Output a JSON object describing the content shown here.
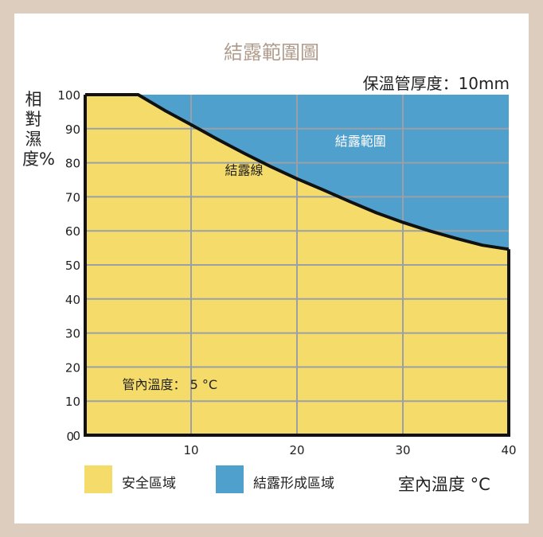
{
  "colors": {
    "safe": "#f5dc6a",
    "condensation": "#4fa0cd",
    "frame": "#dccdbf",
    "title": "#b09c8c"
  },
  "chart_data": {
    "type": "area",
    "title": "結露範圍圖",
    "subtitle": "保溫管厚度：10mm",
    "ylabel": "相對濕度%",
    "xlabel": "室內溫度 °C",
    "xlim": [
      0,
      40
    ],
    "ylim": [
      0,
      100
    ],
    "xticks": [
      10,
      20,
      30,
      40
    ],
    "yticks": [
      0,
      10,
      20,
      30,
      40,
      50,
      60,
      70,
      80,
      90,
      100
    ],
    "grid": true,
    "series": [
      {
        "name": "結露線",
        "x": [
          0,
          5,
          7.5,
          10,
          12.5,
          15,
          17.5,
          20,
          22.5,
          25,
          27.5,
          30,
          32.5,
          35,
          37.5,
          40
        ],
        "values": [
          100,
          100,
          95.4,
          91.2,
          86.9,
          82.8,
          78.9,
          75.3,
          72.0,
          68.6,
          65.3,
          62.5,
          60.0,
          57.8,
          55.8,
          54.6
        ]
      }
    ],
    "annotations": {
      "condensation_region": "結露範圍",
      "dew_line": "結露線",
      "pipe_temp": "管內溫度：  5 °C"
    },
    "legend": [
      {
        "label": "安全區域",
        "color": "#f5dc6a"
      },
      {
        "label": "結露形成區域",
        "color": "#4fa0cd"
      }
    ],
    "legend_position": "bottom"
  }
}
